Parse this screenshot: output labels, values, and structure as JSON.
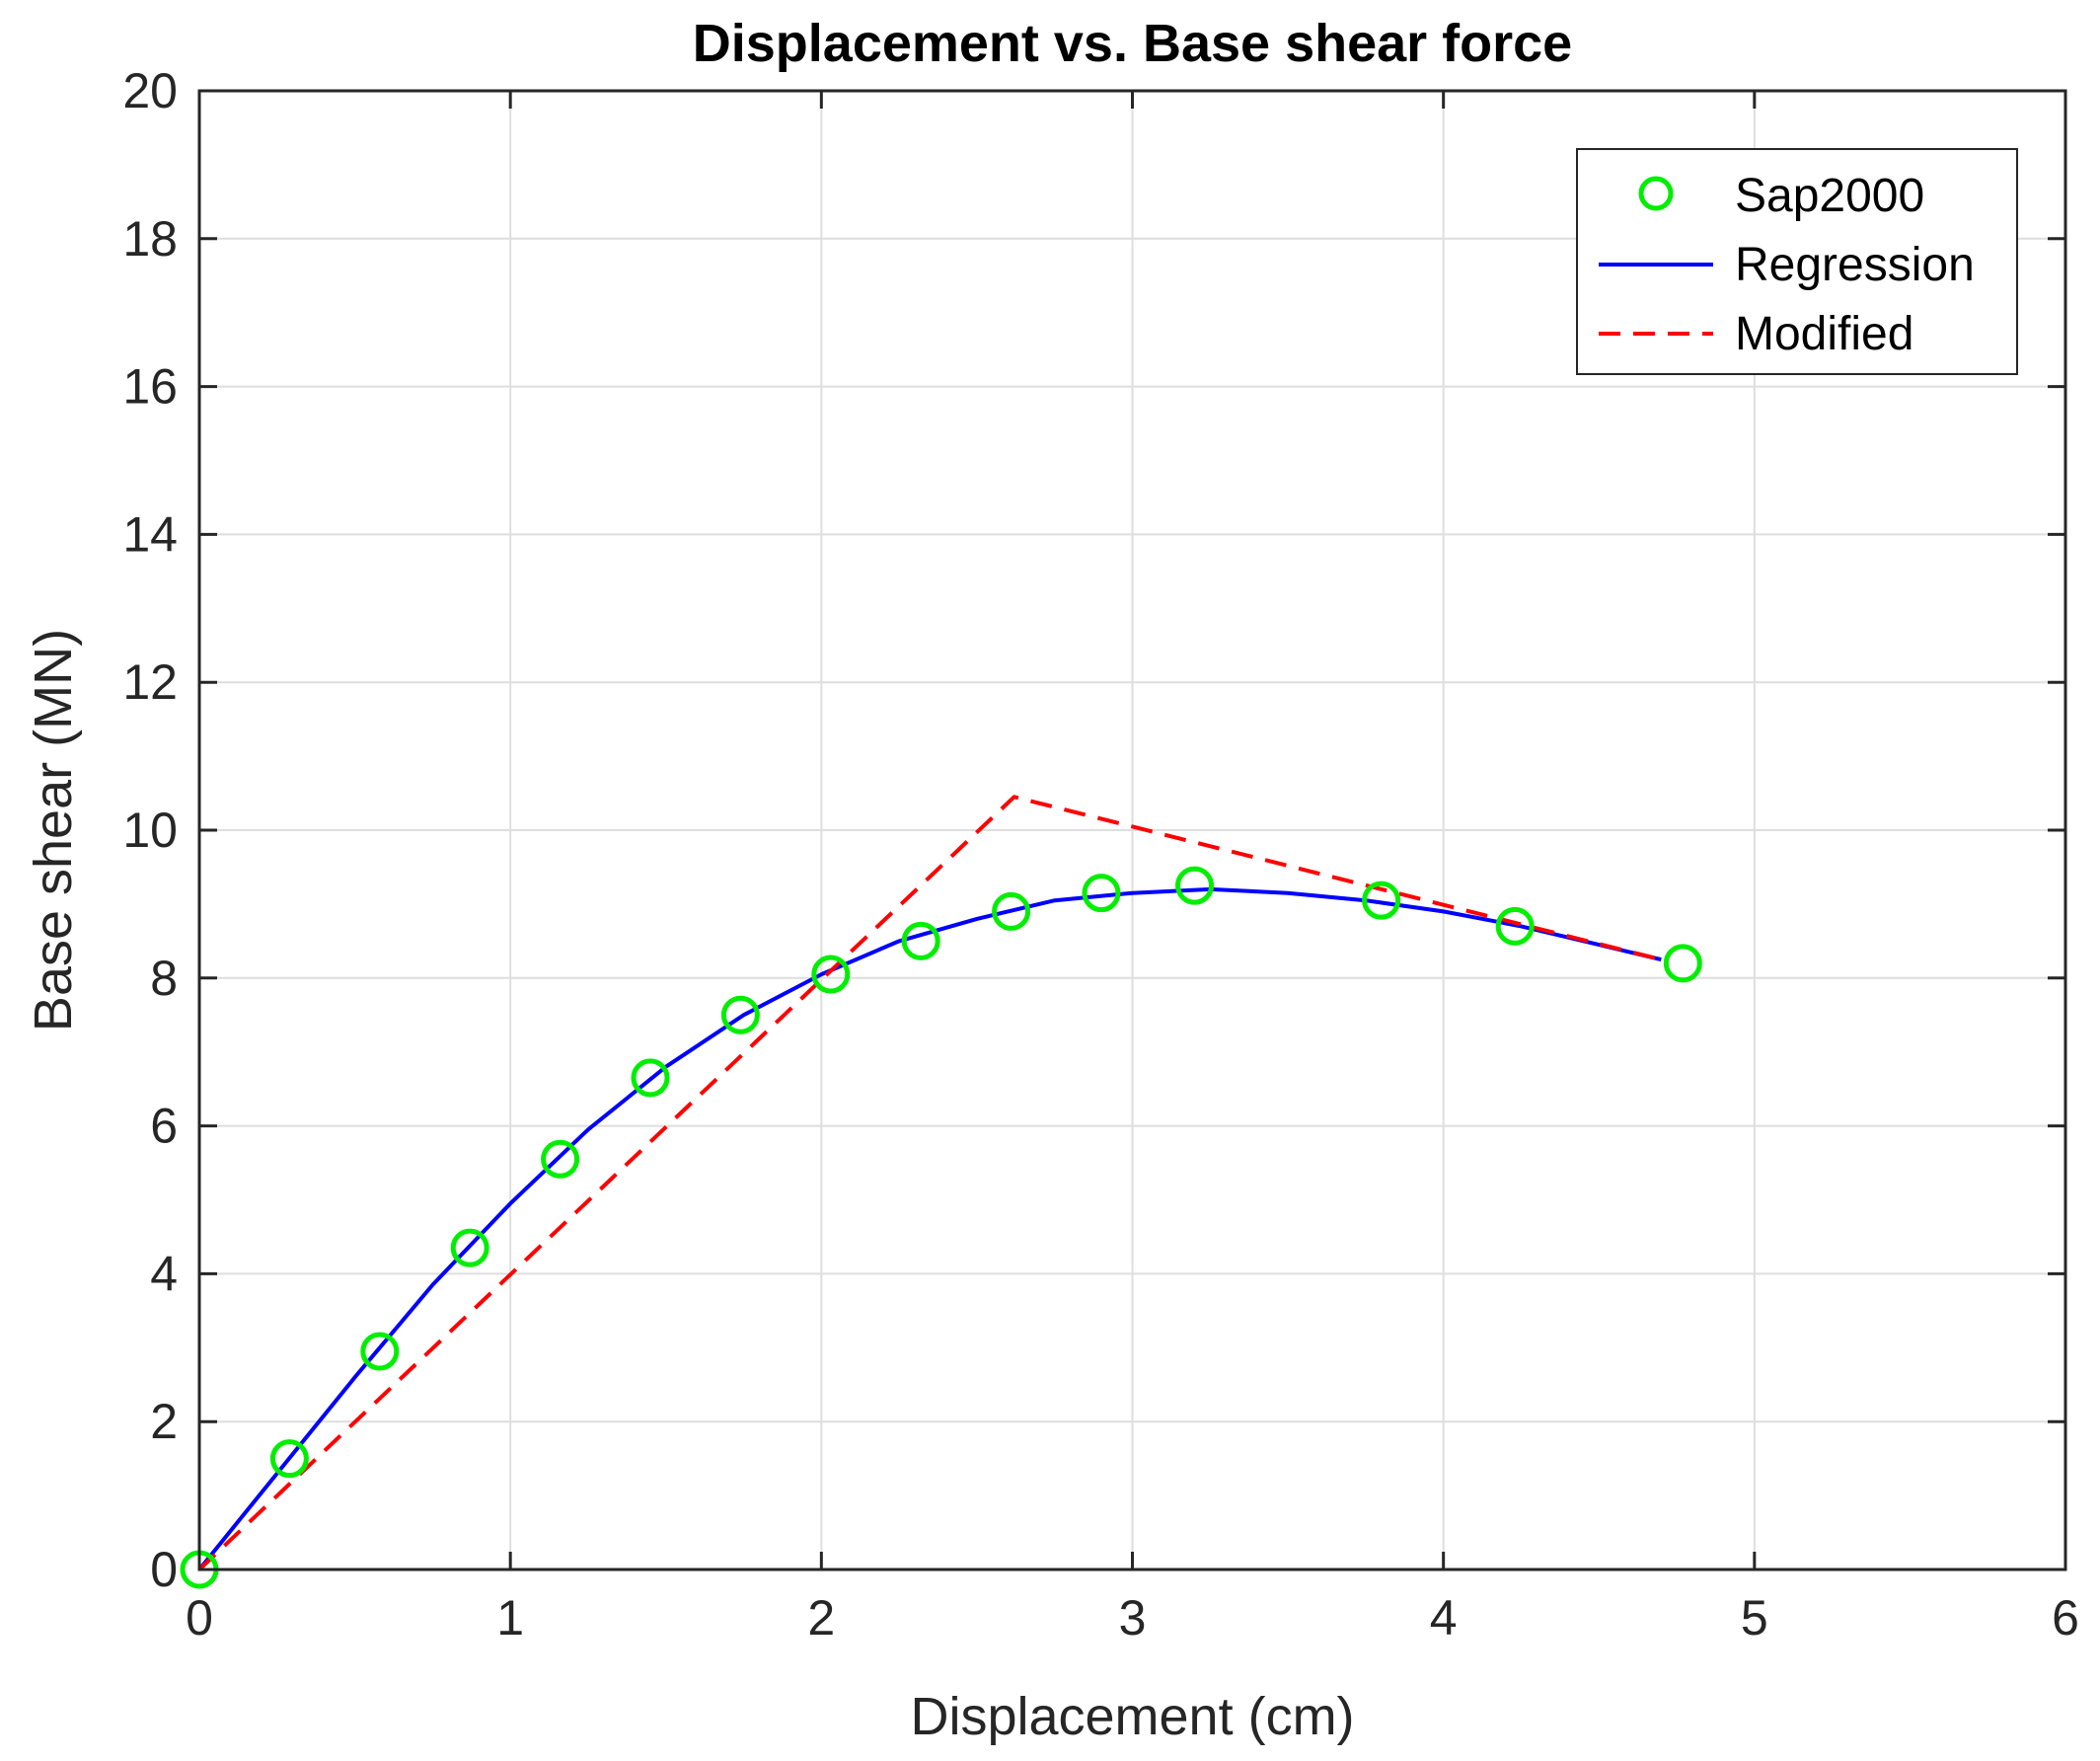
{
  "chart_data": {
    "type": "line",
    "title": "Displacement vs. Base shear force",
    "xlabel": "Displacement (cm)",
    "ylabel": "Base shear (MN)",
    "xlim": [
      0,
      6
    ],
    "ylim": [
      0,
      20
    ],
    "xticks": [
      "0",
      "1",
      "2",
      "3",
      "4",
      "5",
      "6"
    ],
    "yticks": [
      "0",
      "2",
      "4",
      "6",
      "8",
      "10",
      "12",
      "14",
      "16",
      "18",
      "20"
    ],
    "grid": true,
    "legend_position": "top-right",
    "series": [
      {
        "name": "Sap2000",
        "style": "markers",
        "marker": "circle",
        "color": "#00ee00",
        "x": [
          0,
          0.29,
          0.58,
          0.87,
          1.16,
          1.45,
          1.74,
          2.03,
          2.32,
          2.61,
          2.9,
          3.2,
          3.8,
          4.23,
          4.77
        ],
        "y": [
          0,
          1.5,
          2.95,
          4.35,
          5.55,
          6.65,
          7.5,
          8.05,
          8.5,
          8.9,
          9.15,
          9.25,
          9.05,
          8.7,
          8.2
        ]
      },
      {
        "name": "Regression",
        "style": "solid",
        "color": "#0000ff",
        "x": [
          0,
          0.25,
          0.5,
          0.75,
          1.0,
          1.25,
          1.5,
          1.75,
          2.0,
          2.25,
          2.5,
          2.75,
          3.0,
          3.25,
          3.5,
          3.75,
          4.0,
          4.25,
          4.5,
          4.7
        ],
        "y": [
          0,
          1.3,
          2.6,
          3.85,
          4.95,
          5.95,
          6.8,
          7.5,
          8.05,
          8.5,
          8.8,
          9.05,
          9.15,
          9.2,
          9.15,
          9.05,
          8.9,
          8.7,
          8.45,
          8.25
        ]
      },
      {
        "name": "Modified",
        "style": "dashed",
        "color": "#ff0000",
        "x": [
          0,
          2.62,
          4.7
        ],
        "y": [
          0,
          10.45,
          8.25
        ]
      }
    ]
  }
}
